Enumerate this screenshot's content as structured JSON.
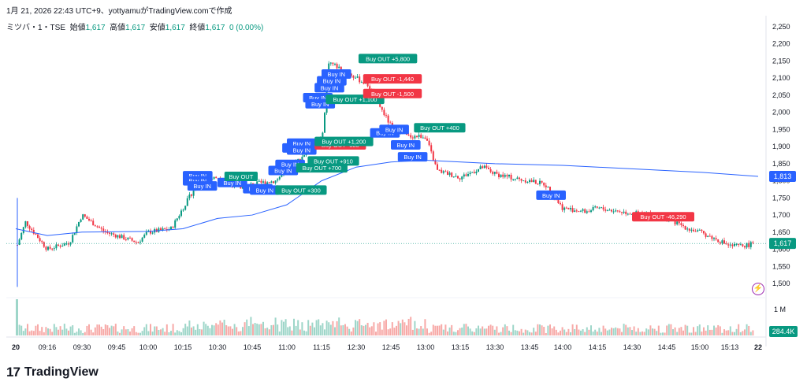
{
  "header": {
    "title": "1月 21, 2026 22:43 UTC+9、yottyamuがTradingView.comで作成",
    "symbol": "ミツバ・1・TSE",
    "open_label": "始値",
    "open_value": "1,617",
    "high_label": "高値",
    "high_value": "1,617",
    "low_label": "安値",
    "low_value": "1,617",
    "close_label": "終値",
    "close_value": "1,617",
    "change": "0 (0.00%)"
  },
  "brand": {
    "logo": "17",
    "name": "TradingView"
  },
  "colors": {
    "up": "#089981",
    "down": "#f23645",
    "vwap": "#2962ff",
    "buy_in": "#2962ff",
    "buy_out_pos": "#089981",
    "buy_out_neg": "#f23645"
  },
  "chart_data": {
    "type": "candlestick",
    "y_ticks": [
      "2,250",
      "2,200",
      "2,150",
      "2,100",
      "2,050",
      "2,000",
      "1,950",
      "1,900",
      "1,850",
      "1,800",
      "1,750",
      "1,700",
      "1,650",
      "1,600",
      "1,550",
      "1,500"
    ],
    "ylim": [
      1450,
      2270
    ],
    "x_ticks": [
      "20",
      "09:16",
      "09:30",
      "09:45",
      "10:00",
      "10:15",
      "10:30",
      "10:45",
      "11:00",
      "11:15",
      "12:30",
      "12:45",
      "13:00",
      "13:15",
      "13:30",
      "13:45",
      "14:00",
      "14:15",
      "14:30",
      "14:45",
      "15:00",
      "15:13",
      "22"
    ],
    "price_path_times": [
      "09:00",
      "09:05",
      "09:16",
      "09:25",
      "09:30",
      "09:40",
      "09:45",
      "09:55",
      "10:00",
      "10:10",
      "10:15",
      "10:22",
      "10:30",
      "10:40",
      "10:45",
      "10:55",
      "11:00",
      "11:08",
      "11:15",
      "11:22",
      "11:28",
      "12:35",
      "12:45",
      "12:52",
      "13:00",
      "13:05",
      "13:15",
      "13:25",
      "13:30",
      "13:40",
      "13:45",
      "13:52",
      "14:00",
      "14:10",
      "14:15",
      "14:25",
      "14:30",
      "14:40",
      "14:45",
      "14:55",
      "15:00",
      "15:10",
      "15:13",
      "15:20",
      "15:30"
    ],
    "price_path": [
      1600,
      1680,
      1600,
      1620,
      1700,
      1650,
      1640,
      1620,
      1650,
      1660,
      1720,
      1800,
      1810,
      1780,
      1790,
      1800,
      1830,
      1880,
      1920,
      2000,
      2150,
      2080,
      1960,
      1930,
      1930,
      1830,
      1810,
      1840,
      1820,
      1805,
      1800,
      1790,
      1720,
      1710,
      1720,
      1710,
      1705,
      1700,
      1690,
      1660,
      1650,
      1620,
      1610,
      1610,
      1617
    ],
    "vwap_times": [
      "09:00",
      "09:16",
      "09:30",
      "10:00",
      "10:15",
      "10:30",
      "10:45",
      "11:00",
      "11:15",
      "12:30",
      "12:45",
      "13:00",
      "13:30",
      "14:00",
      "14:30",
      "15:00",
      "15:30"
    ],
    "vwap": [
      1660,
      1640,
      1650,
      1652,
      1660,
      1690,
      1700,
      1730,
      1800,
      1840,
      1855,
      1860,
      1850,
      1845,
      1835,
      1825,
      1813
    ],
    "last_price": "1,617",
    "vwap_last": "1,813",
    "volume_axis_label": "1 M",
    "volume_last": "284.4K",
    "trade_labels": [
      {
        "text": "Buy IN",
        "kind": "in",
        "time": "10:15",
        "price": 1815
      },
      {
        "text": "Buy IN",
        "kind": "in",
        "time": "10:15",
        "price": 1800
      },
      {
        "text": "Buy IN",
        "kind": "in",
        "time": "10:17",
        "price": 1785
      },
      {
        "text": "Buy IN",
        "kind": "in",
        "time": "10:30",
        "price": 1795
      },
      {
        "text": "Buy OUT",
        "kind": "out_pos",
        "time": "10:33",
        "price": 1813
      },
      {
        "text": "Buy IN",
        "kind": "in",
        "time": "10:41",
        "price": 1777
      },
      {
        "text": "Buy IN",
        "kind": "in",
        "time": "10:44",
        "price": 1773
      },
      {
        "text": "Buy OUT +300",
        "kind": "out_pos",
        "time": "10:55",
        "price": 1773
      },
      {
        "text": "Buy IN",
        "kind": "in",
        "time": "10:52",
        "price": 1830
      },
      {
        "text": "Buy IN",
        "kind": "in",
        "time": "10:55",
        "price": 1848
      },
      {
        "text": "Buy OUT +700",
        "kind": "out_pos",
        "time": "11:04",
        "price": 1838
      },
      {
        "text": "Buy OUT +910",
        "kind": "out_pos",
        "time": "11:09",
        "price": 1858
      },
      {
        "text": "Buy IN",
        "kind": "in",
        "time": "10:58",
        "price": 1896
      },
      {
        "text": "Buy IN",
        "kind": "in",
        "time": "11:00",
        "price": 1910
      },
      {
        "text": "Buy IN",
        "kind": "in",
        "time": "11:00",
        "price": 1890
      },
      {
        "text": "Buy OUT -680",
        "kind": "out_neg",
        "time": "11:12",
        "price": 1905
      },
      {
        "text": "Buy OUT +1,200",
        "kind": "out_pos",
        "time": "11:12",
        "price": 1915
      },
      {
        "text": "Buy IN",
        "kind": "in",
        "time": "11:07",
        "price": 2043
      },
      {
        "text": "Buy IN",
        "kind": "in",
        "time": "11:08",
        "price": 2025
      },
      {
        "text": "Buy IN",
        "kind": "in",
        "time": "11:12",
        "price": 2072
      },
      {
        "text": "Buy IN",
        "kind": "in",
        "time": "11:13",
        "price": 2092
      },
      {
        "text": "Buy IN",
        "kind": "in",
        "time": "11:15",
        "price": 2112
      },
      {
        "text": "Buy OUT +1,100",
        "kind": "out_pos",
        "time": "11:24",
        "price": 2038
      },
      {
        "text": "Buy OUT -1,500",
        "kind": "out_neg",
        "time": "12:33",
        "price": 2055
      },
      {
        "text": "Buy OUT -1,440",
        "kind": "out_neg",
        "time": "12:33",
        "price": 2098
      },
      {
        "text": "Buy OUT +5,800",
        "kind": "out_pos",
        "time": "12:31",
        "price": 2157
      },
      {
        "text": "Buy IN",
        "kind": "in",
        "time": "12:36",
        "price": 1940
      },
      {
        "text": "Buy IN",
        "kind": "in",
        "time": "12:40",
        "price": 1950
      },
      {
        "text": "Buy OUT +400",
        "kind": "out_pos",
        "time": "12:55",
        "price": 1955
      },
      {
        "text": "Buy IN",
        "kind": "in",
        "time": "12:45",
        "price": 1905
      },
      {
        "text": "Buy IN",
        "kind": "in",
        "time": "12:48",
        "price": 1870
      },
      {
        "text": "Buy IN",
        "kind": "in",
        "time": "13:48",
        "price": 1758
      },
      {
        "text": "Buy OUT -46,290",
        "kind": "out_neg",
        "time": "14:30",
        "price": 1695
      }
    ]
  }
}
